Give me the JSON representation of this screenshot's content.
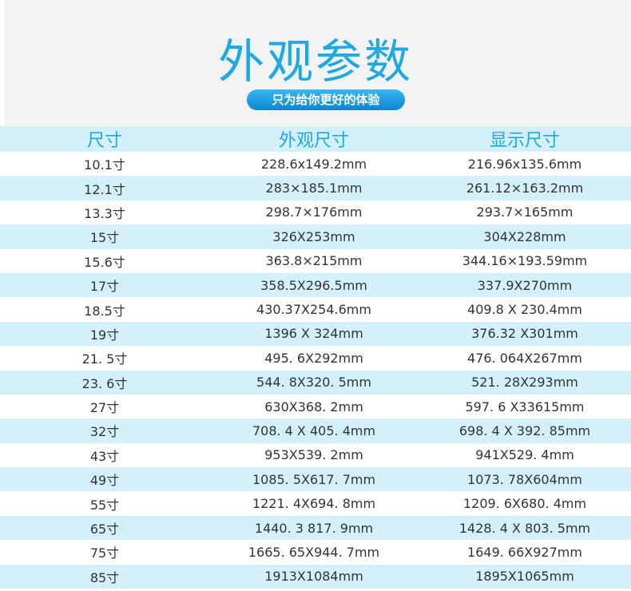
{
  "header": {
    "title": "外观参数",
    "subtitle": "只为给你更好的体验"
  },
  "table": {
    "columns": [
      "尺寸",
      "外观尺寸",
      "显示尺寸"
    ],
    "rows": [
      [
        "10.1寸",
        "228.6x149.2mm",
        "216.96x135.6mm"
      ],
      [
        "12.1寸",
        "283×185.1mm",
        "261.12×163.2mm"
      ],
      [
        "13.3寸",
        "298.7×176mm",
        "293.7×165mm"
      ],
      [
        "15寸",
        "326X253mm",
        "304X228mm"
      ],
      [
        "15.6寸",
        "363.8×215mm",
        "344.16×193.59mm"
      ],
      [
        "17寸",
        "358.5X296.5mm",
        "337.9X270mm"
      ],
      [
        "18.5寸",
        "430.37X254.6mm",
        "409.8 X 230.4mm"
      ],
      [
        "19寸",
        "1396 X 324mm",
        "376.32 X301mm"
      ],
      [
        "21. 5寸",
        "495. 6X292mm",
        "476. 064X267mm"
      ],
      [
        "23. 6寸",
        "544. 8X320. 5mm",
        "521. 28X293mm"
      ],
      [
        "27寸",
        "630X368. 2mm",
        "597. 6 X33615mm"
      ],
      [
        "32寸",
        "708. 4 X 405. 4mm",
        "698. 4 X 392. 85mm"
      ],
      [
        "43寸",
        "953X539. 2mm",
        "941X529. 4mm"
      ],
      [
        "49寸",
        "1085. 5X617. 7mm",
        "1073. 78X604mm"
      ],
      [
        "55寸",
        "1221. 4X694. 8mm",
        "1209. 6X680. 4mm"
      ],
      [
        "65寸",
        "1440. 3 817. 9mm",
        "1428. 4 X 803. 5mm"
      ],
      [
        "75寸",
        "1665. 65X944. 7mm",
        "1649. 66X927mm"
      ],
      [
        "85寸",
        "1913X1084mm",
        "1895X1065mm"
      ]
    ]
  }
}
